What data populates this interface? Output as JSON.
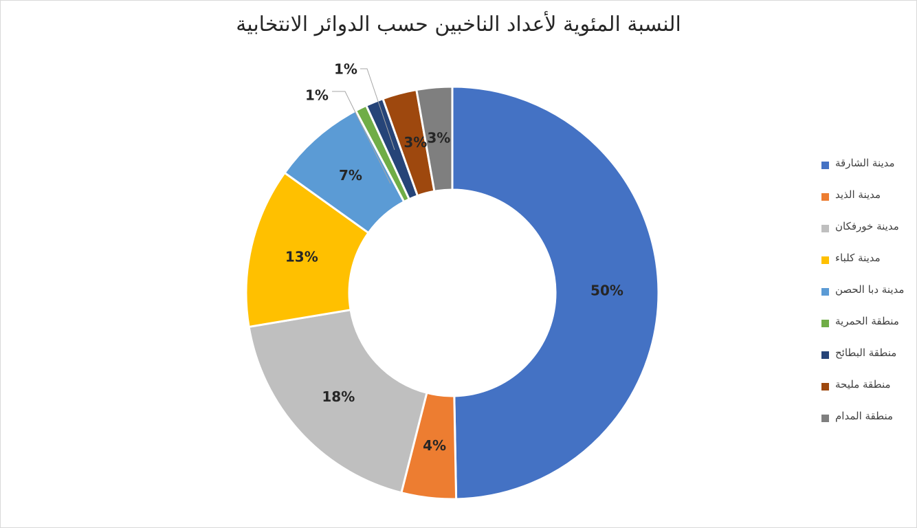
{
  "chart_data": {
    "type": "pie",
    "subtype": "donut",
    "title": "النسبة المئوية لأعداد الناخبين حسب الدوائر الانتخابية",
    "categories": [
      "مدينة الشارقة",
      "مدينة الذيد",
      "مدينة خورفكان",
      "مدينة كلباء",
      "مدينة دبا الحصن",
      "منطقة الحمرية",
      "منطقة البطائح",
      "منطقة مليحة",
      "منطقة المدام"
    ],
    "values": [
      50,
      4,
      18,
      13,
      7,
      1,
      1,
      3,
      3
    ],
    "labels": [
      "50%",
      "4%",
      "18%",
      "13%",
      "7%",
      "1%",
      "1%",
      "3%",
      "3%"
    ],
    "colors": [
      "#4472C4",
      "#ED7D31",
      "#BFBFBF",
      "#FFC000",
      "#5B9BD5",
      "#70AD47",
      "#264478",
      "#9E480E",
      "#7F7F7F"
    ],
    "legend_position": "right",
    "start_angle": "top, clockwise"
  }
}
